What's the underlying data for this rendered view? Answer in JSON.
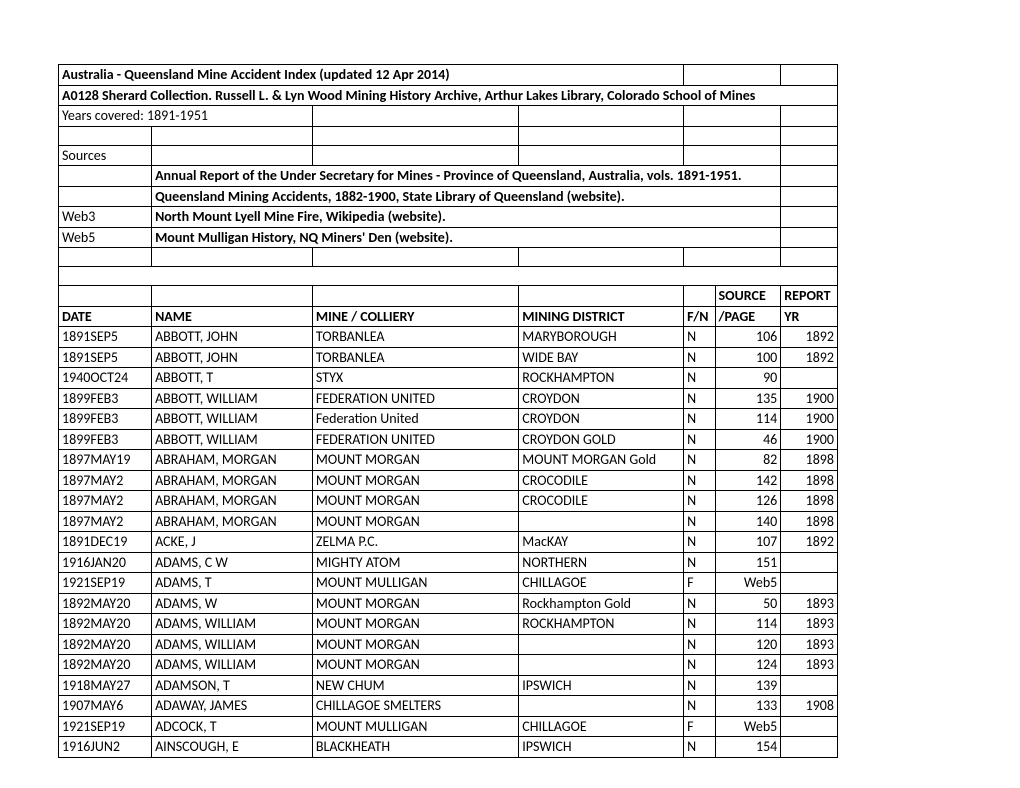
{
  "header": {
    "title": "Australia - Queensland Mine Accident Index (updated 12 Apr 2014)",
    "collection": "A0128 Sherard Collection.  Russell L. & Lyn Wood Mining History Archive, Arthur Lakes Library, Colorado School of Mines",
    "years": "Years covered: 1891-1951",
    "sources_label": "Sources",
    "src1": "Annual Report of the Under Secretary for Mines - Province of Queensland, Australia, vols. 1891-1951.",
    "src2": "Queensland Mining Accidents, 1882-1900, State Library of Queensland (website).",
    "web3_label": "Web3",
    "web3": "North Mount Lyell Mine Fire, Wikipedia (website).",
    "web5_label": "Web5",
    "web5": "Mount Mulligan History, NQ Miners' Den (website)."
  },
  "cols": {
    "date": "DATE",
    "name": "NAME",
    "mine": "MINE / COLLIERY",
    "district": "MINING DISTRICT",
    "fn": "F/N",
    "source1": "SOURCE",
    "source2": "/PAGE",
    "report1": "REPORT",
    "report2": "YR"
  },
  "rows": [
    {
      "date": "1891SEP5",
      "name": "ABBOTT, JOHN",
      "mine": "TORBANLEA",
      "district": "MARYBOROUGH",
      "fn": "N",
      "src": "106",
      "yr": "1892"
    },
    {
      "date": "1891SEP5",
      "name": "ABBOTT, JOHN",
      "mine": "TORBANLEA",
      "district": "WIDE BAY",
      "fn": "N",
      "src": "100",
      "yr": "1892"
    },
    {
      "date": "1940OCT24",
      "name": "ABBOTT, T",
      "mine": "STYX",
      "district": "ROCKHAMPTON",
      "fn": "N",
      "src": "90",
      "yr": ""
    },
    {
      "date": "1899FEB3",
      "name": "ABBOTT, WILLIAM",
      "mine": "FEDERATION UNITED",
      "district": "CROYDON",
      "fn": "N",
      "src": "135",
      "yr": "1900"
    },
    {
      "date": "1899FEB3",
      "name": "ABBOTT, WILLIAM",
      "mine": "Federation United",
      "district": "CROYDON",
      "fn": "N",
      "src": "114",
      "yr": "1900"
    },
    {
      "date": "1899FEB3",
      "name": "ABBOTT, WILLIAM",
      "mine": "FEDERATION UNITED",
      "district": "CROYDON GOLD",
      "fn": "N",
      "src": "46",
      "yr": "1900"
    },
    {
      "date": "1897MAY19",
      "name": "ABRAHAM, MORGAN",
      "mine": "MOUNT MORGAN",
      "district": "MOUNT MORGAN Gold",
      "fn": "N",
      "src": "82",
      "yr": "1898"
    },
    {
      "date": "1897MAY2",
      "name": "ABRAHAM, MORGAN",
      "mine": "MOUNT MORGAN",
      "district": "CROCODILE",
      "fn": "N",
      "src": "142",
      "yr": "1898"
    },
    {
      "date": "1897MAY2",
      "name": "ABRAHAM, MORGAN",
      "mine": "MOUNT MORGAN",
      "district": "CROCODILE",
      "fn": "N",
      "src": "126",
      "yr": "1898"
    },
    {
      "date": "1897MAY2",
      "name": "ABRAHAM, MORGAN",
      "mine": "MOUNT MORGAN",
      "district": "",
      "fn": "N",
      "src": "140",
      "yr": "1898"
    },
    {
      "date": "1891DEC19",
      "name": "ACKE, J",
      "mine": "ZELMA P.C.",
      "district": "MacKAY",
      "fn": "N",
      "src": "107",
      "yr": "1892"
    },
    {
      "date": "1916JAN20",
      "name": "ADAMS, C W",
      "mine": "MIGHTY ATOM",
      "district": "NORTHERN",
      "fn": "N",
      "src": "151",
      "yr": ""
    },
    {
      "date": "1921SEP19",
      "name": "ADAMS, T",
      "mine": "MOUNT MULLIGAN",
      "district": "CHILLAGOE",
      "fn": "F",
      "src": "Web5",
      "yr": ""
    },
    {
      "date": "1892MAY20",
      "name": "ADAMS, W",
      "mine": "MOUNT MORGAN",
      "district": "Rockhampton Gold",
      "fn": "N",
      "src": "50",
      "yr": "1893"
    },
    {
      "date": "1892MAY20",
      "name": "ADAMS, WILLIAM",
      "mine": "MOUNT MORGAN",
      "district": "ROCKHAMPTON",
      "fn": "N",
      "src": "114",
      "yr": "1893"
    },
    {
      "date": "1892MAY20",
      "name": "ADAMS, WILLIAM",
      "mine": "MOUNT MORGAN",
      "district": "",
      "fn": "N",
      "src": "120",
      "yr": "1893"
    },
    {
      "date": "1892MAY20",
      "name": "ADAMS, WILLIAM",
      "mine": "MOUNT MORGAN",
      "district": "",
      "fn": "N",
      "src": "124",
      "yr": "1893"
    },
    {
      "date": "1918MAY27",
      "name": "ADAMSON, T",
      "mine": "NEW CHUM",
      "district": "IPSWICH",
      "fn": "N",
      "src": "139",
      "yr": ""
    },
    {
      "date": "1907MAY6",
      "name": "ADAWAY, JAMES",
      "mine": "CHILLAGOE SMELTERS",
      "district": "",
      "fn": "N",
      "src": "133",
      "yr": "1908"
    },
    {
      "date": "1921SEP19",
      "name": "ADCOCK, T",
      "mine": "MOUNT MULLIGAN",
      "district": "CHILLAGOE",
      "fn": "F",
      "src": "Web5",
      "yr": ""
    },
    {
      "date": "1916JUN2",
      "name": "AINSCOUGH, E",
      "mine": "BLACKHEATH",
      "district": "IPSWICH",
      "fn": "N",
      "src": "154",
      "yr": ""
    }
  ]
}
